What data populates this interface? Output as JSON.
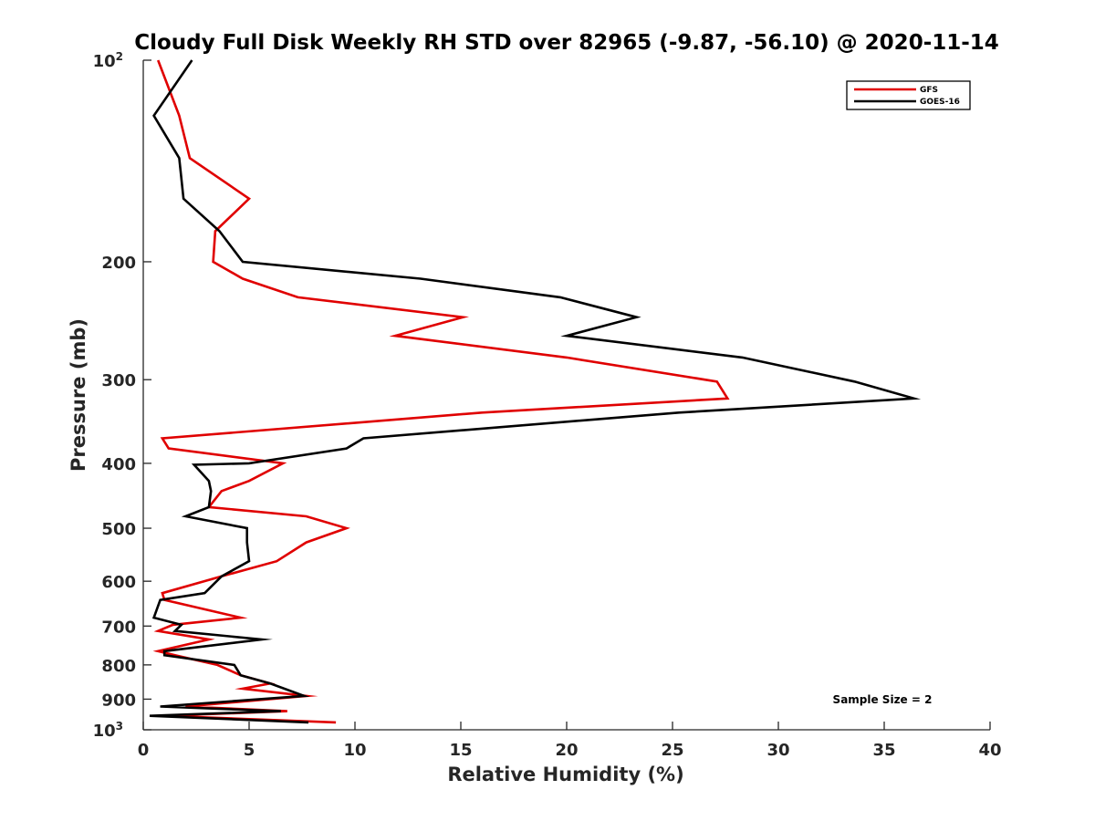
{
  "chart_data": {
    "type": "line",
    "title": "Cloudy Full Disk Weekly RH STD over 82965 (-9.87, -56.10) @ 2020-11-14",
    "xlabel": "Relative Humidity (%)",
    "ylabel": "Pressure (mb)",
    "xlim": [
      0,
      40
    ],
    "ylim": [
      100,
      1000
    ],
    "y_scale": "log",
    "y_reversed": true,
    "x_ticks": [
      0,
      5,
      10,
      15,
      20,
      25,
      30,
      35,
      40
    ],
    "y_ticks": [
      {
        "value": 100,
        "label": "10",
        "sup": "2"
      },
      {
        "value": 200,
        "label": "200"
      },
      {
        "value": 300,
        "label": "300"
      },
      {
        "value": 400,
        "label": "400"
      },
      {
        "value": 500,
        "label": "500"
      },
      {
        "value": 600,
        "label": "600"
      },
      {
        "value": 700,
        "label": "700"
      },
      {
        "value": 800,
        "label": "800"
      },
      {
        "value": 900,
        "label": "900"
      },
      {
        "value": 1000,
        "label": "10",
        "sup": "3"
      }
    ],
    "grid": false,
    "legend_position": "top-right",
    "annotation": "Sample Size = 2",
    "series": [
      {
        "name": "GFS",
        "color": "#e00000",
        "points": [
          [
            0.7,
            100
          ],
          [
            1.7,
            121
          ],
          [
            2.2,
            140
          ],
          [
            5.0,
            161
          ],
          [
            3.4,
            180
          ],
          [
            3.3,
            200
          ],
          [
            4.7,
            212
          ],
          [
            7.3,
            226
          ],
          [
            15.1,
            242
          ],
          [
            11.9,
            258
          ],
          [
            20.0,
            278
          ],
          [
            27.1,
            302
          ],
          [
            27.6,
            320
          ],
          [
            16.0,
            336
          ],
          [
            0.9,
            367
          ],
          [
            1.2,
            380
          ],
          [
            6.6,
            400
          ],
          [
            5.0,
            425
          ],
          [
            3.7,
            440
          ],
          [
            3.1,
            465
          ],
          [
            7.7,
            480
          ],
          [
            9.6,
            500
          ],
          [
            7.7,
            525
          ],
          [
            6.3,
            560
          ],
          [
            3.7,
            590
          ],
          [
            0.9,
            625
          ],
          [
            1.0,
            640
          ],
          [
            4.6,
            680
          ],
          [
            1.4,
            697
          ],
          [
            0.7,
            712
          ],
          [
            3.1,
            733
          ],
          [
            0.7,
            763
          ],
          [
            1.5,
            774
          ],
          [
            3.5,
            800
          ],
          [
            4.6,
            829
          ],
          [
            6.0,
            853
          ],
          [
            4.7,
            868
          ],
          [
            7.7,
            890
          ],
          [
            2.0,
            923
          ],
          [
            6.8,
            938
          ],
          [
            1.0,
            953
          ],
          [
            9.1,
            975
          ]
        ]
      },
      {
        "name": "GOES-16",
        "color": "#000000",
        "points": [
          [
            2.3,
            100
          ],
          [
            0.5,
            121
          ],
          [
            1.7,
            140
          ],
          [
            1.9,
            161
          ],
          [
            3.6,
            180
          ],
          [
            4.7,
            200
          ],
          [
            13.1,
            212
          ],
          [
            19.7,
            226
          ],
          [
            23.3,
            242
          ],
          [
            20.0,
            258
          ],
          [
            28.3,
            278
          ],
          [
            33.6,
            302
          ],
          [
            36.4,
            320
          ],
          [
            25.3,
            336
          ],
          [
            10.4,
            367
          ],
          [
            9.6,
            380
          ],
          [
            5.0,
            400
          ],
          [
            2.4,
            402
          ],
          [
            3.1,
            425
          ],
          [
            3.2,
            440
          ],
          [
            3.1,
            465
          ],
          [
            2.0,
            480
          ],
          [
            4.9,
            500
          ],
          [
            4.9,
            525
          ],
          [
            5.0,
            560
          ],
          [
            3.7,
            590
          ],
          [
            2.9,
            625
          ],
          [
            0.8,
            640
          ],
          [
            0.5,
            680
          ],
          [
            1.8,
            697
          ],
          [
            1.5,
            712
          ],
          [
            5.6,
            733
          ],
          [
            1.0,
            763
          ],
          [
            1.0,
            774
          ],
          [
            4.3,
            800
          ],
          [
            4.6,
            829
          ],
          [
            6.0,
            853
          ],
          [
            7.6,
            890
          ],
          [
            0.8,
            923
          ],
          [
            6.5,
            938
          ],
          [
            0.3,
            953
          ],
          [
            7.8,
            975
          ]
        ]
      }
    ]
  }
}
